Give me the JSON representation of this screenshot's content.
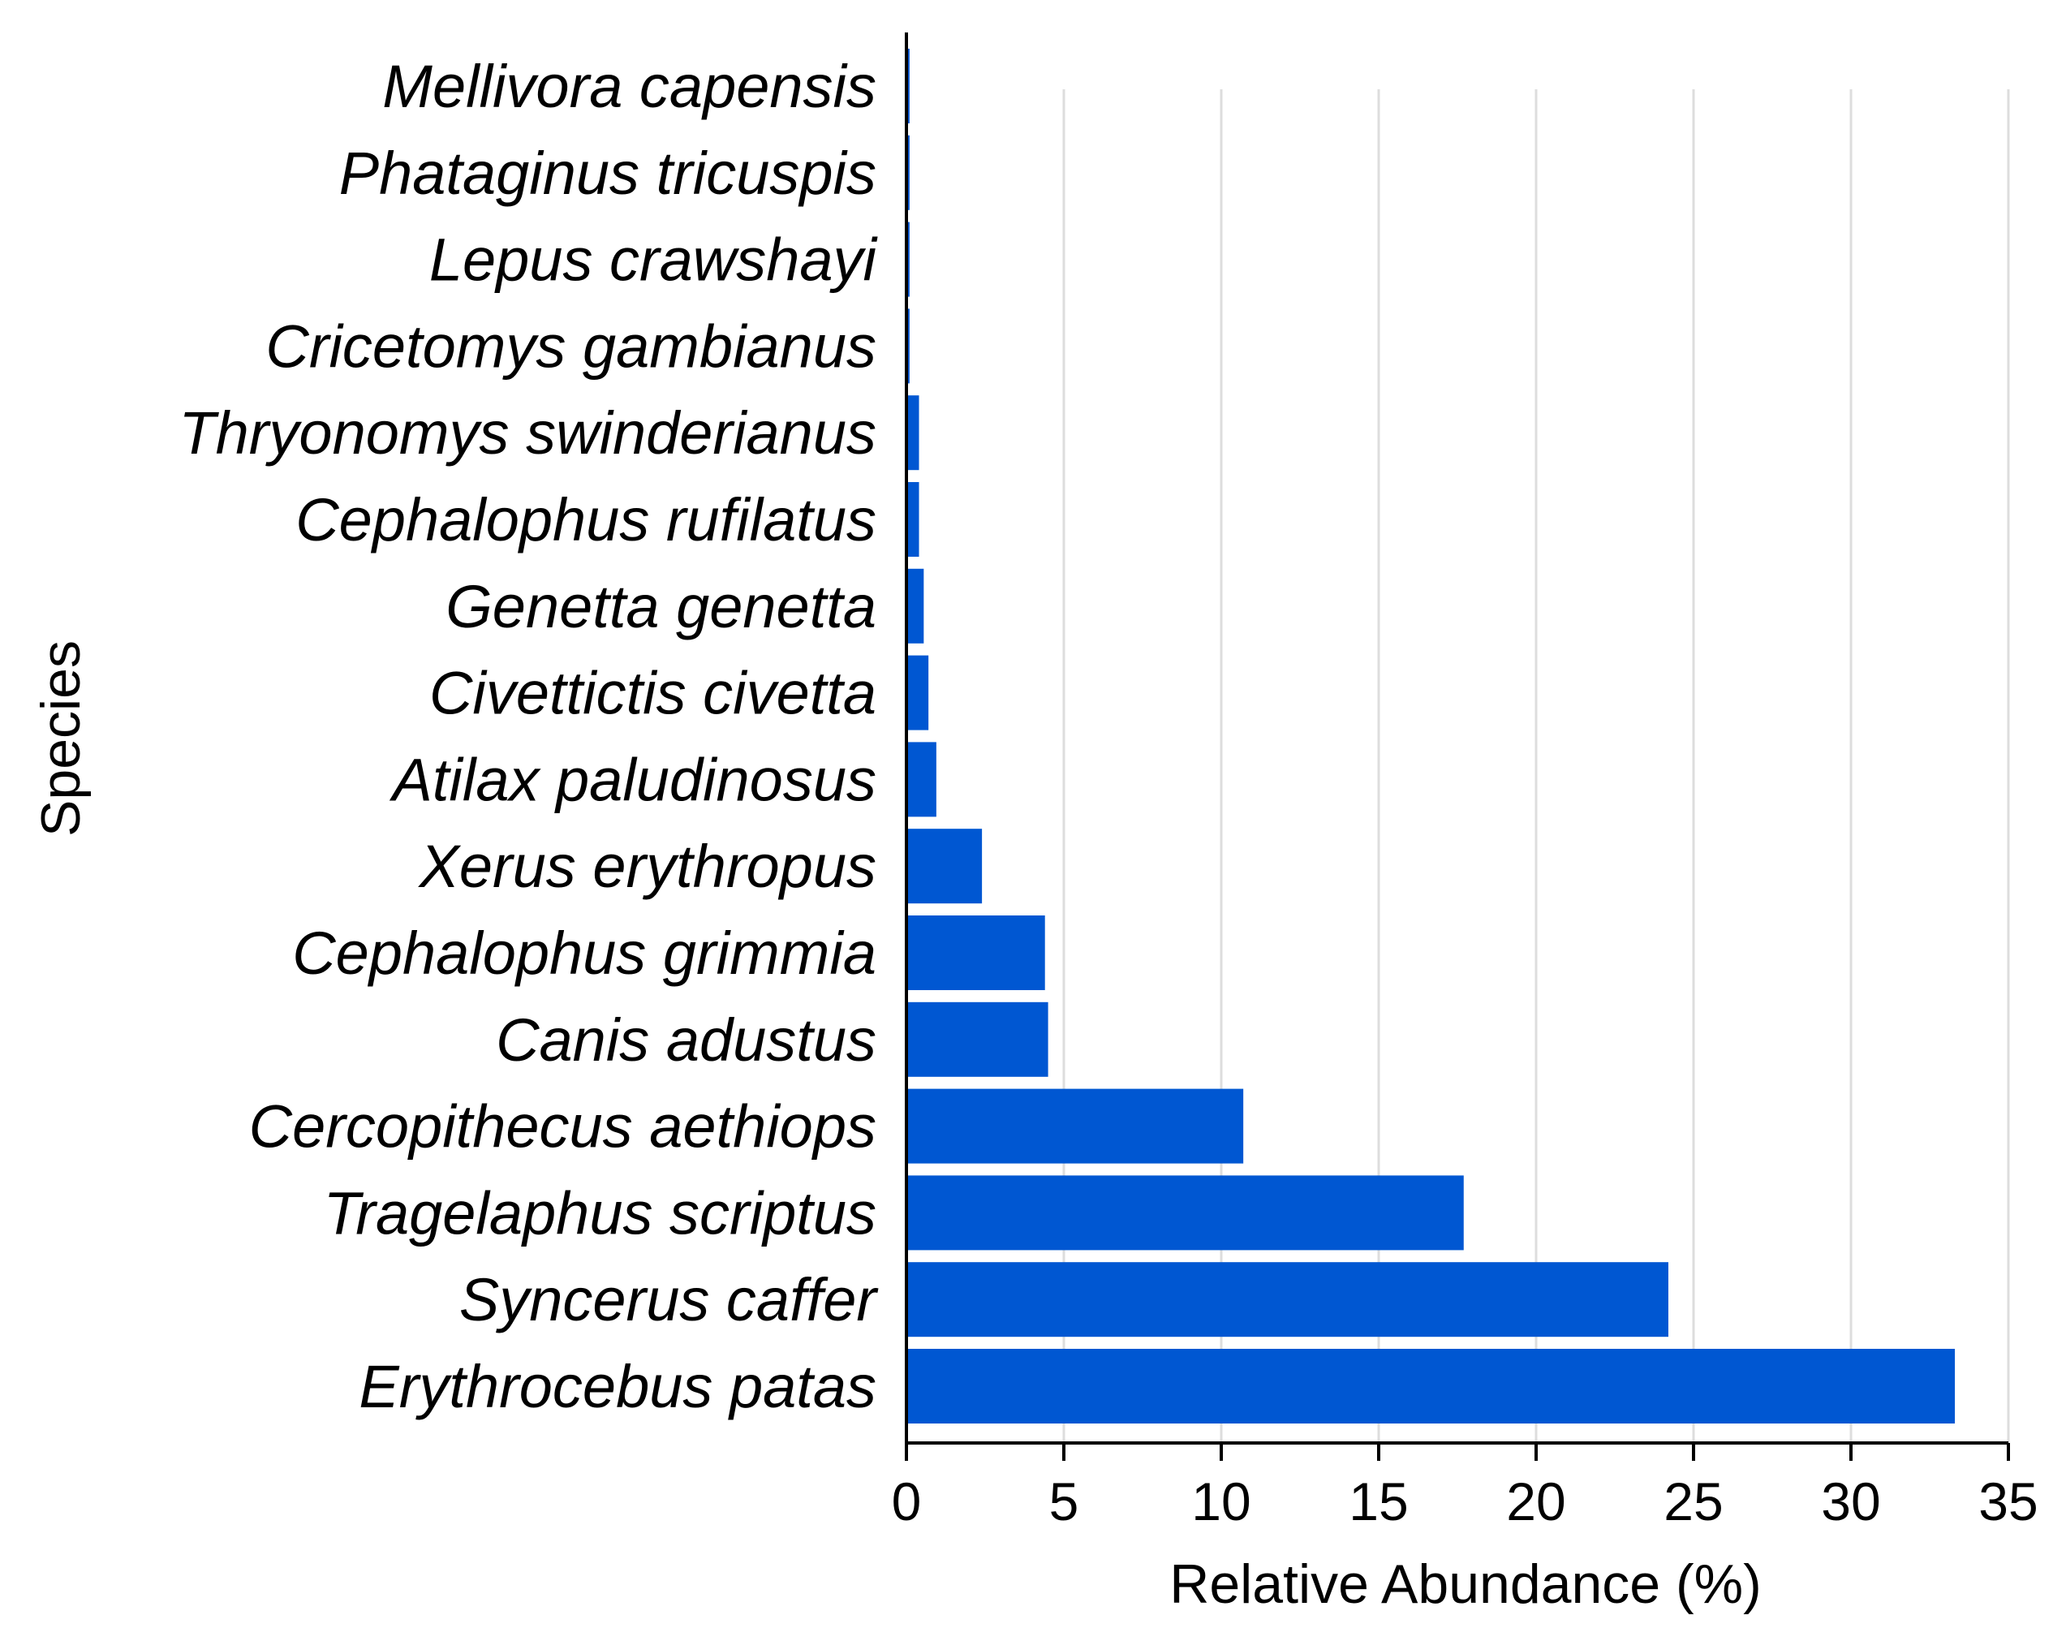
{
  "chart_data": {
    "type": "bar",
    "orientation": "horizontal",
    "title": "",
    "xlabel": "Relative Abundance (%)",
    "ylabel": "Species",
    "xlim": [
      0,
      35
    ],
    "xticks": [
      "0",
      "5",
      "10",
      "15",
      "20",
      "25",
      "30",
      "35"
    ],
    "grid": "vertical",
    "bar_color": "#0057d2",
    "categories": [
      "Erythrocebus patas",
      "Syncerus caffer",
      "Tragelaphus scriptus",
      "Cercopithecus aethiops",
      "Canis adustus",
      "Cephalophus grimmia",
      "Xerus erythropus",
      "Atilax paludinosus",
      "Civettictis civetta",
      "Genetta genetta",
      "Cephalophus rufilatus",
      "Thryonomys swinderianus",
      "Cricetomys gambianus",
      "Lepus crawshayi",
      "Phataginus tricuspis",
      "Mellivora capensis"
    ],
    "values": [
      33.3,
      24.2,
      17.7,
      10.7,
      4.5,
      4.4,
      2.4,
      0.95,
      0.7,
      0.55,
      0.4,
      0.4,
      0.1,
      0.1,
      0.1,
      0.1
    ]
  }
}
